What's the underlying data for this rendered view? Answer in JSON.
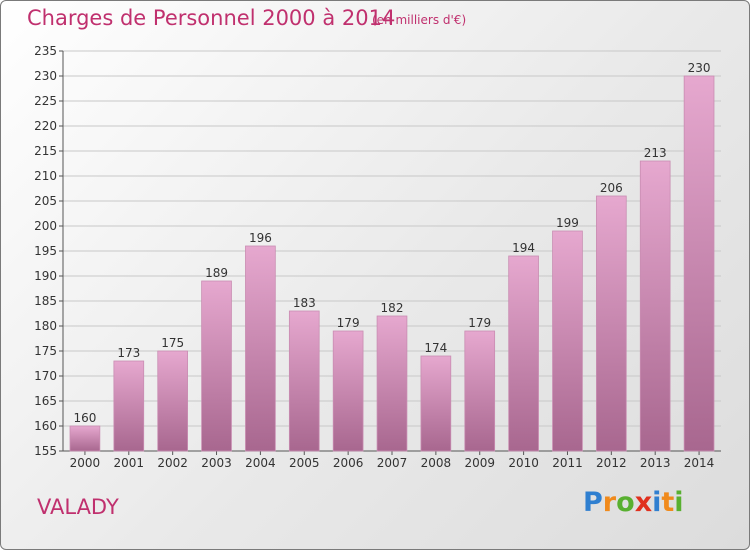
{
  "header": {
    "title": "Charges de Personnel 2000 à 2014",
    "subtitle": "(en milliers d'€)"
  },
  "footer": {
    "city": "VALADY",
    "logo_text": "Proxiti",
    "logo_letters": [
      {
        "char": "P",
        "color": "#2f7fd0"
      },
      {
        "char": "r",
        "color": "#f08a1c"
      },
      {
        "char": "o",
        "color": "#58b030"
      },
      {
        "char": "x",
        "color": "#e0301e"
      },
      {
        "char": "i",
        "color": "#2f7fd0"
      },
      {
        "char": "t",
        "color": "#f08a1c"
      },
      {
        "char": "i",
        "color": "#58b030"
      }
    ]
  },
  "colors": {
    "accent": "#c0306e",
    "bar_top": "#e6a8cf",
    "bar_bottom": "#a8678f",
    "grid": "#c8c8c8"
  },
  "chart_data": {
    "type": "bar",
    "categories": [
      "2000",
      "2001",
      "2002",
      "2003",
      "2004",
      "2005",
      "2006",
      "2007",
      "2008",
      "2009",
      "2010",
      "2011",
      "2012",
      "2013",
      "2014"
    ],
    "values": [
      160,
      173,
      175,
      189,
      196,
      183,
      179,
      182,
      174,
      179,
      194,
      199,
      206,
      213,
      230
    ],
    "title": "Charges de Personnel 2000 à 2014",
    "xlabel": "",
    "ylabel": "",
    "ylim": [
      155,
      235
    ],
    "yticks": [
      155,
      160,
      165,
      170,
      175,
      180,
      185,
      190,
      195,
      200,
      205,
      210,
      215,
      220,
      225,
      230,
      235
    ],
    "grid": true,
    "data_labels": true
  }
}
